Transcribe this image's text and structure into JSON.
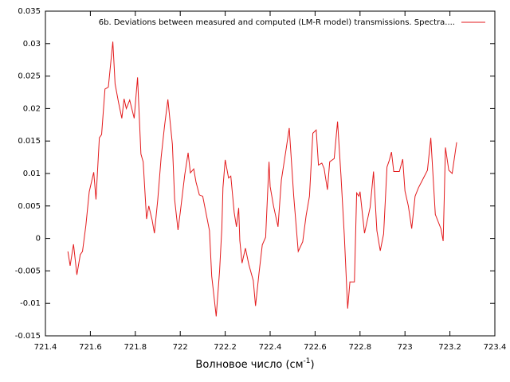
{
  "chart_data": {
    "type": "line",
    "xlabel": [
      "Волновое число (см",
      "-1",
      ")"
    ],
    "xlim": [
      721.4,
      723.4
    ],
    "xticks": [
      721.4,
      721.6,
      721.8,
      722,
      722.2,
      722.4,
      722.6,
      722.8,
      723,
      723.2,
      723.4
    ],
    "ylim": [
      -0.015,
      0.035
    ],
    "yticks": [
      -0.015,
      -0.01,
      -0.005,
      0,
      0.005,
      0.01,
      0.015,
      0.02,
      0.025,
      0.03,
      0.035
    ],
    "legend": "top right",
    "x": [
      721.5,
      721.51,
      721.525,
      721.54,
      721.555,
      721.565,
      721.58,
      721.595,
      721.615,
      721.625,
      721.64,
      721.65,
      721.665,
      721.68,
      721.7,
      721.71,
      721.725,
      721.74,
      721.75,
      721.76,
      721.775,
      721.795,
      721.81,
      721.825,
      721.835,
      721.85,
      721.86,
      721.875,
      721.885,
      721.9,
      721.915,
      721.93,
      721.945,
      721.965,
      721.975,
      721.99,
      722.0,
      722.02,
      722.035,
      722.045,
      722.06,
      722.07,
      722.085,
      722.1,
      722.13,
      722.14,
      722.16,
      722.175,
      722.185,
      722.19,
      722.2,
      722.215,
      722.225,
      722.24,
      722.25,
      722.26,
      722.265,
      722.275,
      722.29,
      722.305,
      722.325,
      722.335,
      722.35,
      722.365,
      722.38,
      722.395,
      722.4,
      722.415,
      722.435,
      722.45,
      722.47,
      722.485,
      722.505,
      722.525,
      722.545,
      722.56,
      722.575,
      722.59,
      722.605,
      722.615,
      722.63,
      722.64,
      722.655,
      722.665,
      722.685,
      722.7,
      722.715,
      722.73,
      722.745,
      722.755,
      722.775,
      722.785,
      722.795,
      722.8,
      722.82,
      722.845,
      722.86,
      722.875,
      722.89,
      722.905,
      722.92,
      722.93,
      722.94,
      722.95,
      722.975,
      722.99,
      723.0,
      723.015,
      723.03,
      723.045,
      723.06,
      723.075,
      723.1,
      723.115,
      723.135,
      723.16,
      723.17,
      723.175,
      723.18,
      723.195,
      723.21,
      723.23
    ],
    "series": [
      {
        "name": "6b. Deviations between measured and computed (LM-R model) transmissions. Spectra....",
        "color": "#e31a1c",
        "values": [
          -0.002,
          -0.0042,
          -0.0009,
          -0.0056,
          -0.0025,
          -0.002,
          0.002,
          0.0072,
          0.0102,
          0.006,
          0.0155,
          0.016,
          0.023,
          0.0233,
          0.0303,
          0.0238,
          0.021,
          0.0185,
          0.0215,
          0.02,
          0.0213,
          0.0185,
          0.0248,
          0.013,
          0.0118,
          0.003,
          0.005,
          0.0028,
          0.0008,
          0.006,
          0.0125,
          0.0173,
          0.0214,
          0.0145,
          0.006,
          0.0013,
          0.004,
          0.0098,
          0.0132,
          0.0101,
          0.0107,
          0.0087,
          0.0067,
          0.0065,
          0.0012,
          -0.0058,
          -0.012,
          -0.005,
          0.0015,
          0.0078,
          0.0121,
          0.0093,
          0.0096,
          0.004,
          0.0018,
          0.0047,
          -0.0003,
          -0.0038,
          -0.0015,
          -0.004,
          -0.0065,
          -0.0104,
          -0.0055,
          -0.001,
          0.0002,
          0.0118,
          0.008,
          0.005,
          0.0018,
          0.009,
          0.0135,
          0.017,
          0.0065,
          -0.002,
          -0.0005,
          0.0035,
          0.0065,
          0.0162,
          0.0167,
          0.0113,
          0.0116,
          0.0108,
          0.0075,
          0.0118,
          0.0123,
          0.018,
          0.0098,
          0.0005,
          -0.0108,
          -0.0067,
          -0.0067,
          0.007,
          0.0065,
          0.0072,
          0.0008,
          0.0048,
          0.0103,
          0.0012,
          -0.0019,
          0.0007,
          0.011,
          0.012,
          0.0133,
          0.0103,
          0.0103,
          0.0122,
          0.0073,
          0.005,
          0.0015,
          0.0065,
          0.0078,
          0.0088,
          0.0105,
          0.0155,
          0.0037,
          0.0015,
          -0.0004,
          0.0065,
          0.014,
          0.0105,
          0.01,
          0.0148
        ]
      }
    ]
  }
}
